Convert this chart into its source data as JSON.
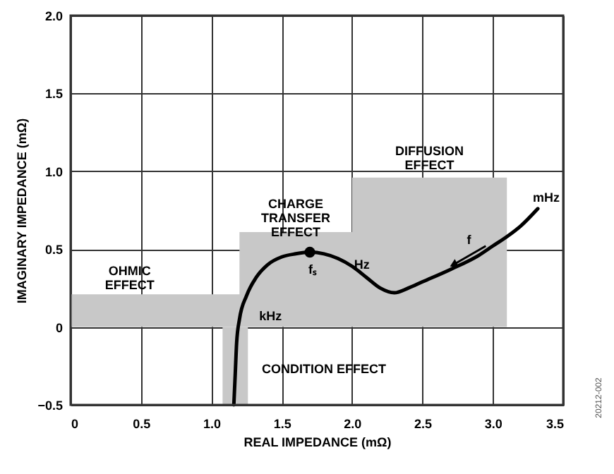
{
  "chart_data": {
    "type": "line",
    "xlabel": "REAL IMPEDANCE (mΩ)",
    "ylabel": "IMAGINARY IMPEDANCE (mΩ)",
    "xlim": [
      0,
      3.5
    ],
    "ylim": [
      -0.5,
      2.0
    ],
    "xticks": [
      {
        "value": 0,
        "label": "0"
      },
      0.5,
      {
        "value": 1,
        "label": "1.0"
      },
      1.5,
      {
        "value": 2,
        "label": "2.0"
      },
      2.5,
      {
        "value": 3,
        "label": "3.0"
      },
      3.5
    ],
    "yticks": [
      {
        "value": -0.5,
        "label": "−0.5"
      },
      {
        "value": 0,
        "label": "0"
      },
      0.5,
      {
        "value": 1,
        "label": "1.0"
      },
      1.5,
      {
        "value": 2,
        "label": "2.0"
      }
    ],
    "grid": true,
    "series": [
      {
        "type": "area",
        "color": "#c8c8c8",
        "x": [
          0,
          1.2,
          1.2,
          2.0,
          2.0,
          3.1
        ],
        "values": [
          0.21,
          0.21,
          0.61,
          0.61,
          0.96,
          0.96
        ]
      },
      {
        "type": "area",
        "color": "#c8c8c8",
        "x": [
          1.08,
          1.26
        ],
        "values": [
          -0.5,
          -0.5
        ]
      },
      {
        "color": "#000000",
        "x": [
          1.16,
          1.17,
          1.18,
          1.2,
          1.25,
          1.32,
          1.4,
          1.5,
          1.6,
          1.7,
          1.8,
          1.9,
          2.0,
          2.1,
          2.2,
          2.3,
          2.4,
          2.5,
          2.7,
          2.9,
          3.0,
          3.1,
          3.2,
          3.32
        ],
        "values": [
          -0.5,
          -0.3,
          -0.1,
          0.05,
          0.2,
          0.32,
          0.4,
          0.45,
          0.47,
          0.48,
          0.47,
          0.44,
          0.39,
          0.32,
          0.25,
          0.22,
          0.25,
          0.29,
          0.37,
          0.46,
          0.52,
          0.58,
          0.65,
          0.76
        ]
      },
      {
        "type": "scatter",
        "color": "#000000",
        "marker": "circle",
        "x": [
          1.7
        ],
        "values": [
          0.48
        ]
      }
    ],
    "annotations": [
      "OHMIC\nEFFECT",
      "CHARGE\nTRANSFER\nEFFECT",
      "DIFFUSION\nEFFECT",
      "CONDITION EFFECT",
      "kHz",
      "fₛ",
      "Hz",
      {
        "text": "f",
        "x": 2.72,
        "y": 0.4
      },
      "mHz",
      "20212-002"
    ]
  }
}
